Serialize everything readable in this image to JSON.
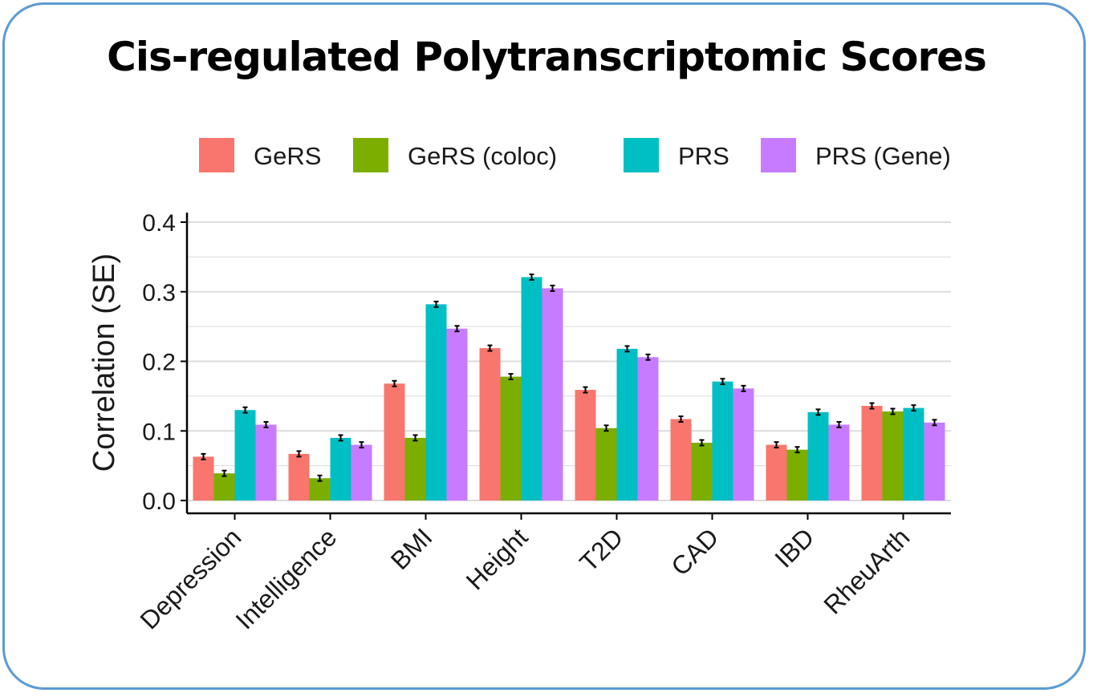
{
  "title": "Cis-regulated Polytranscriptomic Scores",
  "chart_data": {
    "type": "bar",
    "ylabel": "Correlation (SE)",
    "xlabel": "",
    "ylim": [
      0,
      0.41
    ],
    "yticks": [
      0.0,
      0.1,
      0.2,
      0.3,
      0.4
    ],
    "ytick_labels": [
      "0.0",
      "0.1",
      "0.2",
      "0.3",
      "0.4"
    ],
    "grid": true,
    "legend_position": "top",
    "categories": [
      "Depression",
      "Intelligence",
      "BMI",
      "Height",
      "T2D",
      "CAD",
      "IBD",
      "RheuArth"
    ],
    "series": [
      {
        "name": "GeRS",
        "color": "#f8766d",
        "values": [
          0.063,
          0.067,
          0.168,
          0.219,
          0.159,
          0.117,
          0.08,
          0.136
        ],
        "se": [
          0.004,
          0.004,
          0.004,
          0.004,
          0.004,
          0.004,
          0.004,
          0.004
        ]
      },
      {
        "name": "GeRS (coloc)",
        "color": "#7cae00",
        "values": [
          0.039,
          0.032,
          0.09,
          0.178,
          0.104,
          0.083,
          0.073,
          0.128
        ],
        "se": [
          0.004,
          0.004,
          0.004,
          0.004,
          0.004,
          0.004,
          0.004,
          0.004
        ]
      },
      {
        "name": "PRS",
        "color": "#00bfc4",
        "values": [
          0.13,
          0.09,
          0.282,
          0.321,
          0.218,
          0.171,
          0.127,
          0.133
        ],
        "se": [
          0.004,
          0.004,
          0.004,
          0.004,
          0.004,
          0.004,
          0.004,
          0.004
        ]
      },
      {
        "name": "PRS (Gene)",
        "color": "#c77cff",
        "values": [
          0.109,
          0.08,
          0.247,
          0.305,
          0.206,
          0.161,
          0.109,
          0.112
        ],
        "se": [
          0.004,
          0.004,
          0.004,
          0.004,
          0.004,
          0.004,
          0.004,
          0.004
        ]
      }
    ]
  },
  "colors": {
    "border": "#5b9bd5",
    "grid": "#dcdcdc"
  }
}
